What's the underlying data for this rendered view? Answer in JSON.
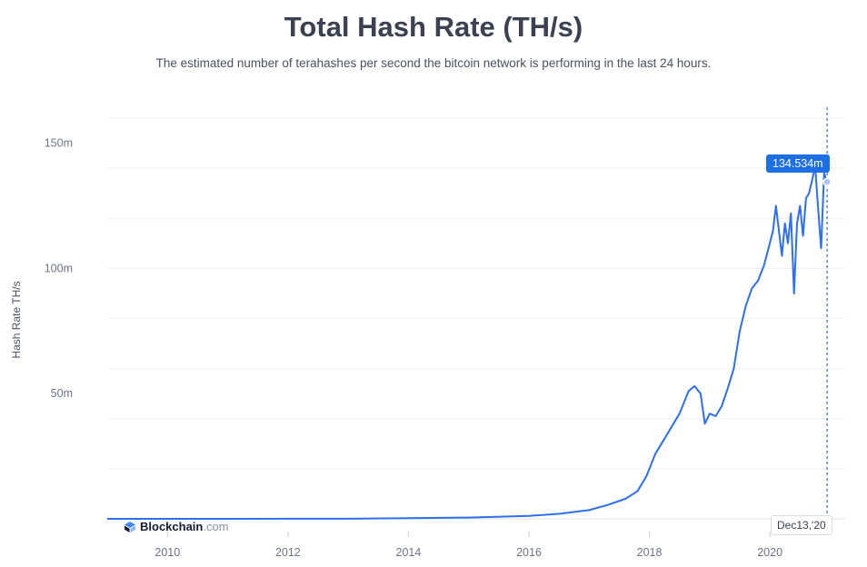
{
  "chart_data": {
    "type": "line",
    "title": "Total Hash Rate (TH/s)",
    "subtitle": "The estimated number of terahashes per second the bitcoin network is performing in the last 24 hours.",
    "ylabel": "Hash Rate TH/s",
    "xlabel": "",
    "x_ticks": [
      "2010",
      "2012",
      "2014",
      "2016",
      "2018",
      "2020"
    ],
    "y_ticks": [
      "50m",
      "100m",
      "150m"
    ],
    "xlim": [
      2009.0,
      2021.25
    ],
    "ylim": [
      0,
      160
    ],
    "grid": true,
    "color": "#2d6ff0",
    "series": [
      {
        "x": [
          2009.0,
          2010.0,
          2011.0,
          2012.0,
          2013.0,
          2014.0,
          2015.0,
          2016.0,
          2016.5,
          2017.0,
          2017.3,
          2017.6,
          2017.8,
          2017.95,
          2018.1,
          2018.3,
          2018.5,
          2018.65,
          2018.75,
          2018.85,
          2018.92,
          2019.0,
          2019.1,
          2019.2,
          2019.3,
          2019.4,
          2019.5,
          2019.6,
          2019.7,
          2019.8,
          2019.9,
          2020.0,
          2020.05,
          2020.1,
          2020.2,
          2020.25,
          2020.3,
          2020.35,
          2020.4,
          2020.45,
          2020.5,
          2020.55,
          2020.6,
          2020.65,
          2020.7,
          2020.75,
          2020.8,
          2020.85,
          2020.9,
          2020.95
        ],
        "y": [
          0,
          0,
          0.01,
          0.02,
          0.05,
          0.3,
          0.5,
          1.2,
          2.0,
          3.5,
          5.5,
          8.0,
          11.0,
          17.0,
          26.0,
          34.0,
          42.0,
          51.0,
          53.0,
          50.0,
          38.0,
          42.0,
          41.0,
          45.0,
          52.0,
          60.0,
          75.0,
          85.0,
          92.0,
          95.0,
          101.0,
          110.0,
          115.0,
          125.0,
          105.0,
          118.0,
          110.0,
          122.0,
          90.0,
          118.0,
          125.0,
          113.0,
          128.0,
          130.0,
          135.0,
          141.0,
          124.0,
          108.0,
          138.0,
          134.534
        ]
      }
    ],
    "annotation": {
      "date": "Dec13,'20",
      "value_label": "134.534m",
      "x": 2020.95,
      "y": 134.534
    }
  },
  "branding": {
    "name": "Blockchain",
    "domain": ".com",
    "icon": "blockchain-logo-icon"
  }
}
